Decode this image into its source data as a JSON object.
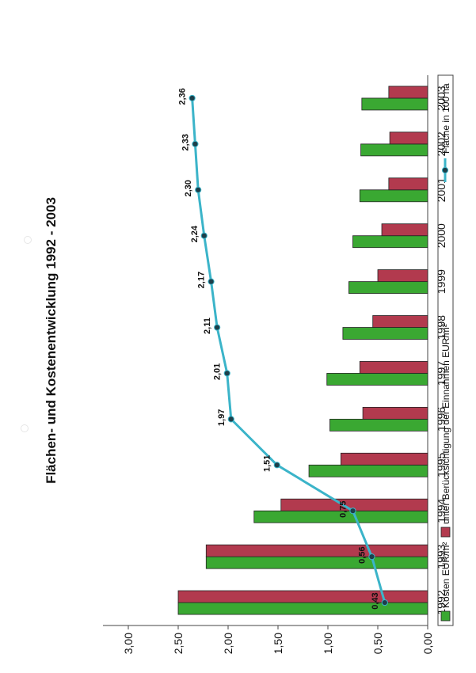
{
  "page": {
    "background": "#ffffff"
  },
  "chart_data": {
    "type": "bar",
    "title": "Flächen- und Kostenentwicklung 1992 - 2003",
    "categories": [
      "1992",
      "1993",
      "1994",
      "1995",
      "1996",
      "1997",
      "1998",
      "1999",
      "2000",
      "2001",
      "2002",
      "2003"
    ],
    "ylim": [
      0,
      3
    ],
    "yticks": [
      "0,00",
      "0,50",
      "1,00",
      "1,50",
      "2,00",
      "2,50",
      "3,00"
    ],
    "ytick_values": [
      0,
      0.5,
      1,
      1.5,
      2,
      2.5,
      3
    ],
    "grid": false,
    "legend_placement": "bottom",
    "series": [
      {
        "name": "Kosten EUR/m²",
        "kind": "bar",
        "color": "#3aa832",
        "values": [
          2.5,
          2.22,
          1.74,
          1.19,
          0.98,
          1.01,
          0.85,
          0.79,
          0.75,
          0.68,
          0.67,
          0.66
        ]
      },
      {
        "name": "unter Berücksichtigung der Einnahmen EUR/m²",
        "kind": "bar",
        "color": "#b23a4e",
        "values": [
          2.5,
          2.22,
          1.47,
          0.87,
          0.65,
          0.68,
          0.55,
          0.5,
          0.46,
          0.39,
          0.38,
          0.39
        ]
      },
      {
        "name": "Fläche in 100 ha",
        "kind": "line",
        "color": "#3bb4c9",
        "values": [
          0.43,
          0.56,
          0.75,
          1.51,
          1.97,
          2.01,
          2.11,
          2.17,
          2.24,
          2.3,
          2.33,
          2.36
        ],
        "labels": [
          "0,43",
          "0,56",
          "0,75",
          "1,51",
          "1,97",
          "2,01",
          "2,11",
          "2,17",
          "2,24",
          "2,30",
          "2,33",
          "2,36"
        ]
      }
    ]
  }
}
